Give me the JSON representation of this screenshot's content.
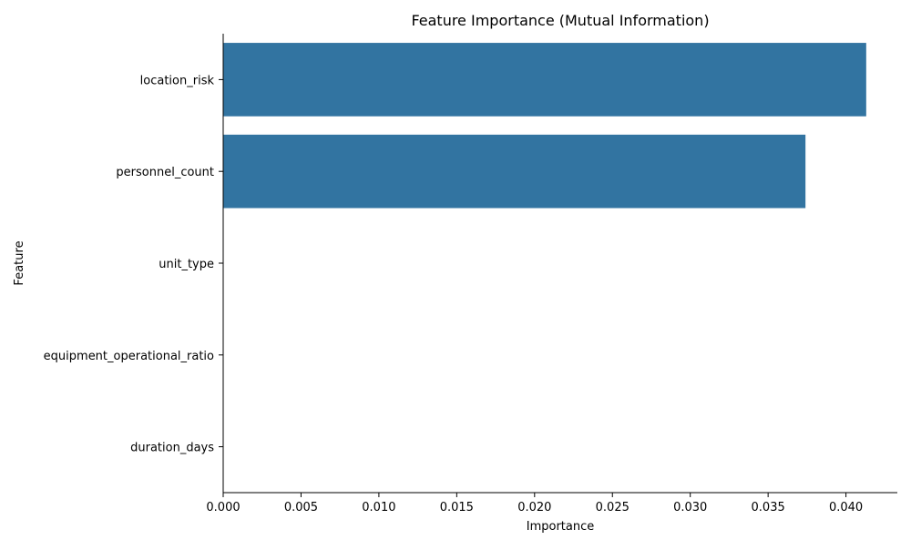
{
  "chart_data": {
    "type": "bar",
    "orientation": "horizontal",
    "title": "Feature Importance (Mutual Information)",
    "xlabel": "Importance",
    "ylabel": "Feature",
    "categories": [
      "location_risk",
      "personnel_count",
      "unit_type",
      "equipment_operational_ratio",
      "duration_days"
    ],
    "values": [
      0.0413,
      0.0374,
      0.0,
      0.0,
      0.0
    ],
    "xlim": [
      0,
      0.0433
    ],
    "xticks": [
      0.0,
      0.005,
      0.01,
      0.015,
      0.02,
      0.025,
      0.03,
      0.035,
      0.04
    ],
    "xtick_labels": [
      "0.000",
      "0.005",
      "0.010",
      "0.015",
      "0.020",
      "0.025",
      "0.030",
      "0.035",
      "0.040"
    ],
    "grid": false,
    "bar_color": "#3274a1"
  }
}
